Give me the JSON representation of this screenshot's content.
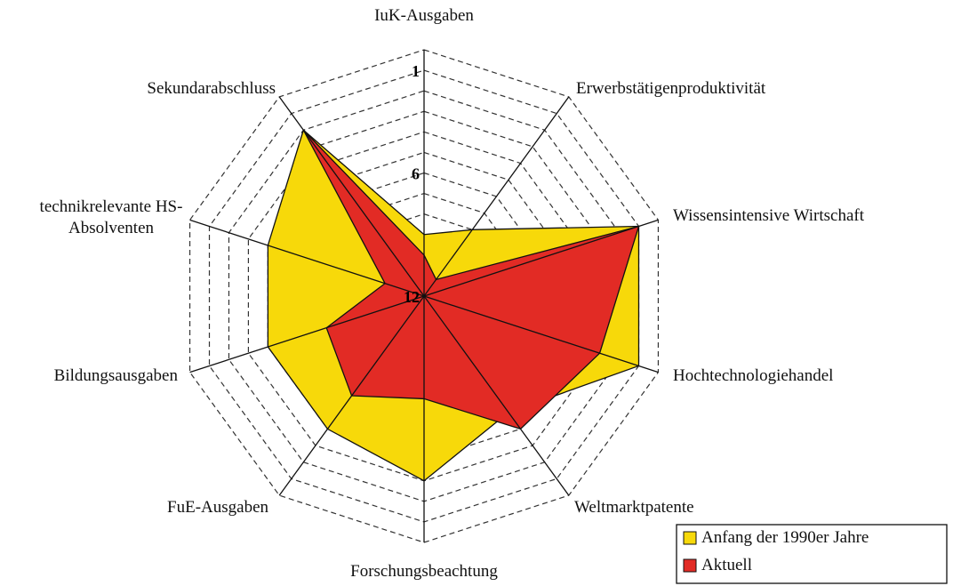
{
  "chart_data": {
    "type": "radar",
    "categories": [
      "IuK-Ausgaben",
      "Erwerbstätigenproduktivität",
      "Wissensintensive Wirtschaft",
      "Hochtechnologiehandel",
      "Weltmarktpatente",
      "Forschungsbeachtung",
      "FuE-Ausgaben",
      "Bildungsausgaben",
      "technikrelevante HS-Absolventen",
      "Sekundarabschluss"
    ],
    "series": [
      {
        "name": "Anfang der 1990er Jahre",
        "color": "#f7d90a",
        "values": [
          9,
          8,
          1,
          1,
          5,
          3,
          4,
          4,
          4,
          2
        ]
      },
      {
        "name": "Aktuell",
        "color": "#e22b25",
        "values": [
          10,
          11,
          1,
          3,
          4,
          7,
          6,
          7,
          10,
          2
        ]
      }
    ],
    "rlim": [
      12,
      0
    ],
    "rticks": [
      1,
      6,
      12
    ],
    "grid": true,
    "legend": "bottom-right"
  }
}
